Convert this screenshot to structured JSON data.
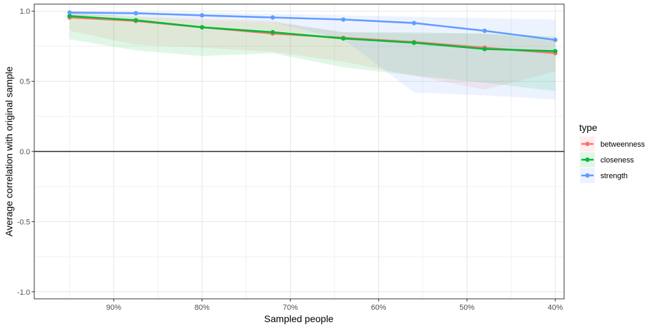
{
  "chart_data": {
    "type": "line",
    "xlabel": "Sampled people",
    "ylabel": "Average correlation with original sample",
    "x_direction": "reversed",
    "x_ticks": [
      90,
      80,
      70,
      60,
      50,
      40
    ],
    "x_tick_labels": [
      "90%",
      "80%",
      "70%",
      "60%",
      "50%",
      "40%"
    ],
    "y_ticks": [
      1.0,
      0.5,
      0.0,
      -0.5,
      -1.0
    ],
    "y_tick_labels": [
      "1.0",
      "0.5",
      "0.0",
      "-0.5",
      "-1.0"
    ],
    "xlim": [
      39.0,
      99.0
    ],
    "ylim": [
      -1.05,
      1.05
    ],
    "x": [
      95,
      87.5,
      80,
      72,
      64,
      56,
      48,
      40
    ],
    "hline_at": 0.0,
    "grid": true,
    "legend_position": "right",
    "legend_title": "type",
    "series": [
      {
        "name": "betweenness",
        "color": "#F8766D",
        "values": [
          0.955,
          0.93,
          0.885,
          0.84,
          0.81,
          0.78,
          0.74,
          0.7
        ],
        "lower": [
          0.86,
          0.76,
          0.74,
          0.71,
          0.64,
          0.54,
          0.44,
          0.57
        ],
        "upper": [
          0.985,
          0.96,
          0.945,
          0.93,
          0.85,
          0.84,
          0.84,
          0.79
        ]
      },
      {
        "name": "closeness",
        "color": "#00BA38",
        "values": [
          0.965,
          0.935,
          0.885,
          0.85,
          0.805,
          0.775,
          0.73,
          0.715
        ],
        "lower": [
          0.8,
          0.72,
          0.68,
          0.7,
          0.6,
          0.54,
          0.49,
          0.43
        ],
        "upper": [
          0.985,
          0.965,
          0.93,
          0.92,
          0.85,
          0.85,
          0.84,
          0.82
        ]
      },
      {
        "name": "strength",
        "color": "#619CFF",
        "values": [
          0.99,
          0.985,
          0.97,
          0.955,
          0.94,
          0.915,
          0.86,
          0.795
        ],
        "lower": [
          0.97,
          0.965,
          0.93,
          0.92,
          0.8,
          0.42,
          0.4,
          0.37
        ],
        "upper": [
          0.995,
          0.995,
          0.99,
          0.98,
          0.97,
          0.96,
          0.95,
          0.94
        ]
      }
    ]
  }
}
